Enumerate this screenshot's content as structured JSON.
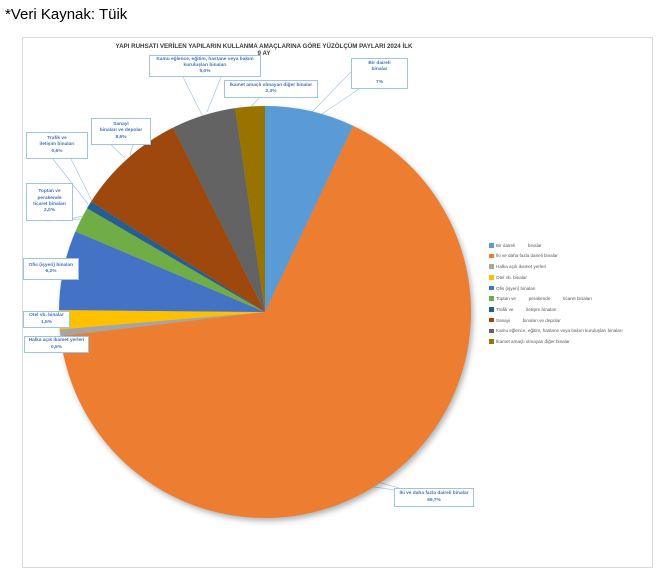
{
  "source_note": "*Veri Kaynak: Tüik",
  "colors": {
    "callout_text": "#4472C4",
    "callout_border": "#9DC3E6",
    "leader_line": "#A9C6E2",
    "legend_text": "#595959",
    "title_text": "#3B3B3B",
    "frame_border": "#D9D9D9"
  },
  "chart_data": {
    "type": "pie",
    "title": "YAPI RUHSATI VERİLEN YAPILARIN KULLANMA AMAÇLARINA GÖRE YÜZÖLÇÜM PAYLARI 2024 İLK 9 AY",
    "unit": "%",
    "legend_position": "right",
    "start_angle_deg": 0,
    "direction": "clockwise",
    "slices": [
      {
        "id": "bir_daireli",
        "label": "Bir daireli binalar",
        "value": 7.0,
        "pct_label": "7%",
        "color": "#5B9BD5",
        "callout_lines": [
          "Bir daireli",
          "binalar"
        ]
      },
      {
        "id": "iki_ve_daha",
        "label": "İki ve daha fazla daireli binalar",
        "value": 65.7,
        "pct_label": "65,7%",
        "color": "#ED7D31",
        "callout_lines": [
          "İki ve daha fazla daireli binalar"
        ]
      },
      {
        "id": "halka",
        "label": "Halka açık ikamet yerleri",
        "value": 0.5,
        "pct_label": "0,5%",
        "color": "#A5A5A5",
        "callout_lines": [
          "Halka açık ikamet yerleri"
        ]
      },
      {
        "id": "otel",
        "label": "Otel vb. binalar",
        "value": 1.5,
        "pct_label": "1,5%",
        "color": "#FFC000",
        "callout_lines": [
          "Otel vb. binalar"
        ]
      },
      {
        "id": "ofis",
        "label": "Ofis (işyeri) binaları",
        "value": 6.2,
        "pct_label": "6,2%",
        "color": "#4472C4",
        "callout_lines": [
          "Ofis (işyeri) binaları"
        ]
      },
      {
        "id": "toptan",
        "label": "Toptan ve perakende ticaret binaları",
        "value": 2.0,
        "pct_label": "2,0%",
        "color": "#70AD47",
        "callout_lines": [
          "Toptan ve",
          "perakende",
          "ticaret binaları"
        ]
      },
      {
        "id": "trafik",
        "label": "Trafik ve iletişim binaları",
        "value": 0.6,
        "pct_label": "0,6%",
        "color": "#255E91",
        "callout_lines": [
          "Trafik ve",
          "iletişim binaları"
        ]
      },
      {
        "id": "sanayi",
        "label": "Sanayi binaları ve depolar",
        "value": 8.6,
        "pct_label": "8,6%",
        "color": "#9E480E",
        "callout_lines": [
          "Sanayi",
          "binaları ve depolar"
        ]
      },
      {
        "id": "kamu",
        "label": "Kamu eğlence, eğitim, hastane veya bakım kuruluşları binaları",
        "value": 5.0,
        "pct_label": "5,0%",
        "color": "#636363",
        "callout_lines": [
          "Kamu eğlence, eğitim, hastane veya bakım",
          "kuruluşları binaları"
        ]
      },
      {
        "id": "ikamet_diger",
        "label": "İkamet amaçlı olmayan diğer binalar",
        "value": 2.3,
        "pct_label": "2,3%",
        "color": "#997300",
        "callout_lines": [
          "İkamet amaçlı olmayan diğer binalar"
        ]
      }
    ],
    "legend_labels": [
      "Bir daireli          binalar",
      "İki ve daha fazla daireli binalar",
      "Halka açık ikamet yerleri",
      "Otel vb. binalar",
      "Ofis (işyeri) binaları",
      "Toptan ve          perakende          ticaret binaları",
      "Trafik ve          iletişim binaları",
      "Sanayi          binaları ve depolar",
      "Kamu eğlence, eğitim, hastane veya bakım kuruluşları binaları",
      "İkamet amaçlı olmayan diğer binalar"
    ]
  }
}
